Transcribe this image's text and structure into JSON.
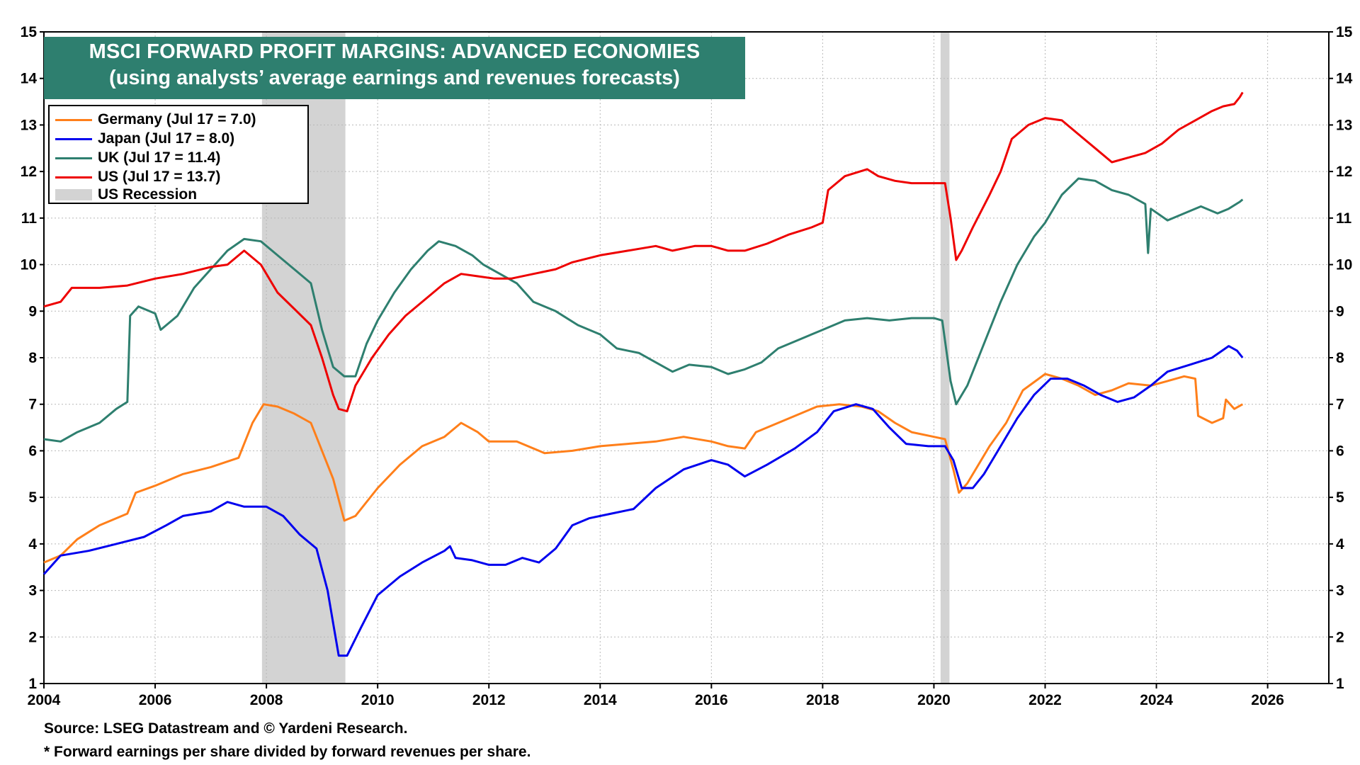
{
  "chart_data": {
    "type": "line",
    "title": "MSCI FORWARD PROFIT MARGINS: ADVANCED ECONOMIES",
    "subtitle": "(using analysts’ average earnings and revenues forecasts)",
    "xlim": [
      2004,
      2027.1
    ],
    "ylim": [
      1,
      15
    ],
    "y_ticks": [
      1,
      2,
      3,
      4,
      5,
      6,
      7,
      8,
      9,
      10,
      11,
      12,
      13,
      14,
      15
    ],
    "x_ticks": [
      2004,
      2006,
      2008,
      2010,
      2012,
      2014,
      2016,
      2018,
      2020,
      2022,
      2024,
      2026
    ],
    "grid": true,
    "legend_position": "top-left",
    "recessions": [
      {
        "start": 2007.92,
        "end": 2009.42
      },
      {
        "start": 2020.12,
        "end": 2020.28
      }
    ],
    "series": [
      {
        "name": "Germany (Jul 17 = 7.0)",
        "color": "#ff7f1a",
        "points": [
          [
            2004,
            3.6
          ],
          [
            2004.3,
            3.75
          ],
          [
            2004.6,
            4.1
          ],
          [
            2005,
            4.4
          ],
          [
            2005.5,
            4.65
          ],
          [
            2005.65,
            5.1
          ],
          [
            2006,
            5.25
          ],
          [
            2006.5,
            5.5
          ],
          [
            2007,
            5.65
          ],
          [
            2007.5,
            5.85
          ],
          [
            2007.75,
            6.6
          ],
          [
            2007.95,
            7.0
          ],
          [
            2008.2,
            6.95
          ],
          [
            2008.5,
            6.8
          ],
          [
            2008.8,
            6.6
          ],
          [
            2009.0,
            6.0
          ],
          [
            2009.2,
            5.4
          ],
          [
            2009.4,
            4.5
          ],
          [
            2009.6,
            4.6
          ],
          [
            2010,
            5.2
          ],
          [
            2010.4,
            5.7
          ],
          [
            2010.8,
            6.1
          ],
          [
            2011.2,
            6.3
          ],
          [
            2011.5,
            6.6
          ],
          [
            2011.8,
            6.4
          ],
          [
            2012.0,
            6.2
          ],
          [
            2012.5,
            6.2
          ],
          [
            2013,
            5.95
          ],
          [
            2013.5,
            6.0
          ],
          [
            2014,
            6.1
          ],
          [
            2014.5,
            6.15
          ],
          [
            2015,
            6.2
          ],
          [
            2015.5,
            6.3
          ],
          [
            2016,
            6.2
          ],
          [
            2016.3,
            6.1
          ],
          [
            2016.6,
            6.05
          ],
          [
            2016.8,
            6.4
          ],
          [
            2017.2,
            6.6
          ],
          [
            2017.6,
            6.8
          ],
          [
            2017.9,
            6.95
          ],
          [
            2018.3,
            7.0
          ],
          [
            2018.7,
            6.95
          ],
          [
            2019.0,
            6.85
          ],
          [
            2019.3,
            6.6
          ],
          [
            2019.6,
            6.4
          ],
          [
            2020.0,
            6.3
          ],
          [
            2020.2,
            6.25
          ],
          [
            2020.35,
            5.6
          ],
          [
            2020.45,
            5.1
          ],
          [
            2020.6,
            5.3
          ],
          [
            2020.8,
            5.7
          ],
          [
            2021.0,
            6.1
          ],
          [
            2021.3,
            6.6
          ],
          [
            2021.6,
            7.3
          ],
          [
            2022.0,
            7.65
          ],
          [
            2022.3,
            7.55
          ],
          [
            2022.6,
            7.4
          ],
          [
            2022.9,
            7.2
          ],
          [
            2023.2,
            7.3
          ],
          [
            2023.5,
            7.45
          ],
          [
            2023.9,
            7.4
          ],
          [
            2024.2,
            7.5
          ],
          [
            2024.5,
            7.6
          ],
          [
            2024.7,
            7.55
          ],
          [
            2024.75,
            6.75
          ],
          [
            2025.0,
            6.6
          ],
          [
            2025.2,
            6.7
          ],
          [
            2025.25,
            7.1
          ],
          [
            2025.4,
            6.9
          ],
          [
            2025.55,
            7.0
          ]
        ]
      },
      {
        "name": "Japan (Jul 17 = 8.0)",
        "color": "#0000ee",
        "points": [
          [
            2004,
            3.35
          ],
          [
            2004.3,
            3.75
          ],
          [
            2004.8,
            3.85
          ],
          [
            2005.3,
            4.0
          ],
          [
            2005.8,
            4.15
          ],
          [
            2006.2,
            4.4
          ],
          [
            2006.5,
            4.6
          ],
          [
            2007.0,
            4.7
          ],
          [
            2007.3,
            4.9
          ],
          [
            2007.6,
            4.8
          ],
          [
            2008.0,
            4.8
          ],
          [
            2008.3,
            4.6
          ],
          [
            2008.6,
            4.2
          ],
          [
            2008.9,
            3.9
          ],
          [
            2009.1,
            3.0
          ],
          [
            2009.2,
            2.3
          ],
          [
            2009.3,
            1.6
          ],
          [
            2009.45,
            1.6
          ],
          [
            2009.7,
            2.2
          ],
          [
            2010.0,
            2.9
          ],
          [
            2010.4,
            3.3
          ],
          [
            2010.8,
            3.6
          ],
          [
            2011.2,
            3.85
          ],
          [
            2011.3,
            3.95
          ],
          [
            2011.4,
            3.7
          ],
          [
            2011.7,
            3.65
          ],
          [
            2012.0,
            3.55
          ],
          [
            2012.3,
            3.55
          ],
          [
            2012.6,
            3.7
          ],
          [
            2012.9,
            3.6
          ],
          [
            2013.2,
            3.9
          ],
          [
            2013.5,
            4.4
          ],
          [
            2013.8,
            4.55
          ],
          [
            2014.2,
            4.65
          ],
          [
            2014.6,
            4.75
          ],
          [
            2015.0,
            5.2
          ],
          [
            2015.5,
            5.6
          ],
          [
            2016.0,
            5.8
          ],
          [
            2016.3,
            5.7
          ],
          [
            2016.6,
            5.45
          ],
          [
            2017.0,
            5.7
          ],
          [
            2017.5,
            6.05
          ],
          [
            2017.9,
            6.4
          ],
          [
            2018.2,
            6.85
          ],
          [
            2018.6,
            7.0
          ],
          [
            2018.9,
            6.9
          ],
          [
            2019.2,
            6.5
          ],
          [
            2019.5,
            6.15
          ],
          [
            2019.9,
            6.1
          ],
          [
            2020.2,
            6.1
          ],
          [
            2020.35,
            5.8
          ],
          [
            2020.5,
            5.2
          ],
          [
            2020.7,
            5.2
          ],
          [
            2020.9,
            5.5
          ],
          [
            2021.2,
            6.1
          ],
          [
            2021.5,
            6.7
          ],
          [
            2021.8,
            7.2
          ],
          [
            2022.1,
            7.55
          ],
          [
            2022.4,
            7.55
          ],
          [
            2022.7,
            7.4
          ],
          [
            2023.0,
            7.2
          ],
          [
            2023.3,
            7.05
          ],
          [
            2023.6,
            7.15
          ],
          [
            2023.9,
            7.4
          ],
          [
            2024.2,
            7.7
          ],
          [
            2024.6,
            7.85
          ],
          [
            2025.0,
            8.0
          ],
          [
            2025.3,
            8.25
          ],
          [
            2025.45,
            8.15
          ],
          [
            2025.55,
            8.0
          ]
        ]
      },
      {
        "name": "UK (Jul 17 = 11.4)",
        "color": "#2e7f6f",
        "points": [
          [
            2004,
            6.25
          ],
          [
            2004.3,
            6.2
          ],
          [
            2004.6,
            6.4
          ],
          [
            2005.0,
            6.6
          ],
          [
            2005.3,
            6.9
          ],
          [
            2005.5,
            7.05
          ],
          [
            2005.55,
            8.9
          ],
          [
            2005.7,
            9.1
          ],
          [
            2006.0,
            8.95
          ],
          [
            2006.1,
            8.6
          ],
          [
            2006.4,
            8.9
          ],
          [
            2006.7,
            9.5
          ],
          [
            2007.0,
            9.9
          ],
          [
            2007.3,
            10.3
          ],
          [
            2007.6,
            10.55
          ],
          [
            2007.9,
            10.5
          ],
          [
            2008.2,
            10.2
          ],
          [
            2008.5,
            9.9
          ],
          [
            2008.8,
            9.6
          ],
          [
            2009.0,
            8.6
          ],
          [
            2009.2,
            7.8
          ],
          [
            2009.4,
            7.6
          ],
          [
            2009.6,
            7.6
          ],
          [
            2009.8,
            8.3
          ],
          [
            2010.0,
            8.8
          ],
          [
            2010.3,
            9.4
          ],
          [
            2010.6,
            9.9
          ],
          [
            2010.9,
            10.3
          ],
          [
            2011.1,
            10.5
          ],
          [
            2011.4,
            10.4
          ],
          [
            2011.7,
            10.2
          ],
          [
            2011.9,
            10.0
          ],
          [
            2012.2,
            9.8
          ],
          [
            2012.5,
            9.6
          ],
          [
            2012.8,
            9.2
          ],
          [
            2013.2,
            9.0
          ],
          [
            2013.6,
            8.7
          ],
          [
            2014.0,
            8.5
          ],
          [
            2014.3,
            8.2
          ],
          [
            2014.7,
            8.1
          ],
          [
            2015.0,
            7.9
          ],
          [
            2015.3,
            7.7
          ],
          [
            2015.6,
            7.85
          ],
          [
            2016.0,
            7.8
          ],
          [
            2016.3,
            7.65
          ],
          [
            2016.6,
            7.75
          ],
          [
            2016.9,
            7.9
          ],
          [
            2017.2,
            8.2
          ],
          [
            2017.6,
            8.4
          ],
          [
            2018.0,
            8.6
          ],
          [
            2018.4,
            8.8
          ],
          [
            2018.8,
            8.85
          ],
          [
            2019.2,
            8.8
          ],
          [
            2019.6,
            8.85
          ],
          [
            2020.0,
            8.85
          ],
          [
            2020.15,
            8.8
          ],
          [
            2020.3,
            7.5
          ],
          [
            2020.4,
            7.0
          ],
          [
            2020.6,
            7.4
          ],
          [
            2020.8,
            8.0
          ],
          [
            2021.0,
            8.6
          ],
          [
            2021.2,
            9.2
          ],
          [
            2021.5,
            10.0
          ],
          [
            2021.8,
            10.6
          ],
          [
            2022.0,
            10.9
          ],
          [
            2022.3,
            11.5
          ],
          [
            2022.6,
            11.85
          ],
          [
            2022.9,
            11.8
          ],
          [
            2023.2,
            11.6
          ],
          [
            2023.5,
            11.5
          ],
          [
            2023.8,
            11.3
          ],
          [
            2023.85,
            10.25
          ],
          [
            2023.9,
            11.2
          ],
          [
            2024.2,
            10.95
          ],
          [
            2024.5,
            11.1
          ],
          [
            2024.8,
            11.25
          ],
          [
            2025.1,
            11.1
          ],
          [
            2025.3,
            11.2
          ],
          [
            2025.5,
            11.35
          ],
          [
            2025.55,
            11.4
          ]
        ]
      },
      {
        "name": "US (Jul 17 = 13.7)",
        "color": "#ee0000",
        "points": [
          [
            2004,
            9.1
          ],
          [
            2004.3,
            9.2
          ],
          [
            2004.5,
            9.5
          ],
          [
            2005.0,
            9.5
          ],
          [
            2005.5,
            9.55
          ],
          [
            2006.0,
            9.7
          ],
          [
            2006.5,
            9.8
          ],
          [
            2007.0,
            9.95
          ],
          [
            2007.3,
            10.0
          ],
          [
            2007.6,
            10.3
          ],
          [
            2007.9,
            10.0
          ],
          [
            2008.2,
            9.4
          ],
          [
            2008.5,
            9.05
          ],
          [
            2008.8,
            8.7
          ],
          [
            2009.0,
            8.0
          ],
          [
            2009.2,
            7.2
          ],
          [
            2009.3,
            6.9
          ],
          [
            2009.45,
            6.85
          ],
          [
            2009.6,
            7.4
          ],
          [
            2009.9,
            8.0
          ],
          [
            2010.2,
            8.5
          ],
          [
            2010.5,
            8.9
          ],
          [
            2010.9,
            9.3
          ],
          [
            2011.2,
            9.6
          ],
          [
            2011.5,
            9.8
          ],
          [
            2011.8,
            9.75
          ],
          [
            2012.1,
            9.7
          ],
          [
            2012.4,
            9.7
          ],
          [
            2012.8,
            9.8
          ],
          [
            2013.2,
            9.9
          ],
          [
            2013.5,
            10.05
          ],
          [
            2014.0,
            10.2
          ],
          [
            2014.5,
            10.3
          ],
          [
            2015.0,
            10.4
          ],
          [
            2015.3,
            10.3
          ],
          [
            2015.7,
            10.4
          ],
          [
            2016.0,
            10.4
          ],
          [
            2016.3,
            10.3
          ],
          [
            2016.6,
            10.3
          ],
          [
            2017.0,
            10.45
          ],
          [
            2017.4,
            10.65
          ],
          [
            2017.8,
            10.8
          ],
          [
            2018.0,
            10.9
          ],
          [
            2018.1,
            11.6
          ],
          [
            2018.4,
            11.9
          ],
          [
            2018.8,
            12.05
          ],
          [
            2019.0,
            11.9
          ],
          [
            2019.3,
            11.8
          ],
          [
            2019.6,
            11.75
          ],
          [
            2020.0,
            11.75
          ],
          [
            2020.2,
            11.75
          ],
          [
            2020.3,
            11.0
          ],
          [
            2020.4,
            10.1
          ],
          [
            2020.5,
            10.3
          ],
          [
            2020.7,
            10.8
          ],
          [
            2021.0,
            11.5
          ],
          [
            2021.2,
            12.0
          ],
          [
            2021.4,
            12.7
          ],
          [
            2021.7,
            13.0
          ],
          [
            2022.0,
            13.15
          ],
          [
            2022.3,
            13.1
          ],
          [
            2022.6,
            12.8
          ],
          [
            2022.9,
            12.5
          ],
          [
            2023.2,
            12.2
          ],
          [
            2023.5,
            12.3
          ],
          [
            2023.8,
            12.4
          ],
          [
            2024.1,
            12.6
          ],
          [
            2024.4,
            12.9
          ],
          [
            2024.7,
            13.1
          ],
          [
            2025.0,
            13.3
          ],
          [
            2025.2,
            13.4
          ],
          [
            2025.4,
            13.45
          ],
          [
            2025.5,
            13.6
          ],
          [
            2025.55,
            13.7
          ]
        ]
      }
    ],
    "recession_label": "US Recession",
    "recession_color": "#d3d3d3",
    "source": "Source: LSEG Datastream and © Yardeni Research.",
    "footnote": "* Forward earnings per share divided by forward revenues per share."
  }
}
